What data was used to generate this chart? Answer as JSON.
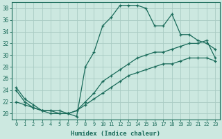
{
  "xlabel": "Humidex (Indice chaleur)",
  "ylabel": "",
  "bg_color": "#cce8e0",
  "line_color": "#1a6b5a",
  "grid_color": "#aaccc4",
  "xlim": [
    -0.5,
    23.5
  ],
  "ylim": [
    19.0,
    39.0
  ],
  "xticks": [
    0,
    1,
    2,
    3,
    4,
    5,
    6,
    7,
    8,
    9,
    10,
    11,
    12,
    13,
    14,
    15,
    16,
    17,
    18,
    19,
    20,
    21,
    22,
    23
  ],
  "yticks": [
    20,
    22,
    24,
    26,
    28,
    30,
    32,
    34,
    36,
    38
  ],
  "line1_x": [
    0,
    1,
    2,
    3,
    4,
    5,
    6,
    7,
    8,
    9,
    10,
    11,
    12,
    13,
    14,
    15,
    16,
    17,
    18,
    19,
    20,
    21,
    22,
    23
  ],
  "line1_y": [
    24.5,
    22.5,
    21.5,
    20.5,
    20.5,
    20.5,
    20.0,
    19.5,
    28.0,
    30.5,
    35.0,
    36.5,
    38.5,
    38.5,
    38.5,
    38.0,
    35.0,
    35.0,
    37.0,
    33.5,
    33.5,
    32.5,
    32.0,
    31.0
  ],
  "line2_x": [
    0,
    1,
    2,
    3,
    4,
    5,
    6,
    7,
    8,
    9,
    10,
    11,
    12,
    13,
    14,
    15,
    16,
    17,
    18,
    19,
    20,
    21,
    22,
    23
  ],
  "line2_y": [
    24.0,
    22.0,
    21.0,
    20.5,
    20.5,
    20.0,
    20.0,
    20.5,
    22.0,
    23.5,
    25.5,
    26.5,
    27.5,
    28.5,
    29.5,
    30.0,
    30.5,
    30.5,
    31.0,
    31.5,
    32.0,
    32.0,
    32.5,
    29.5
  ],
  "line3_x": [
    0,
    1,
    2,
    3,
    4,
    5,
    6,
    7,
    8,
    9,
    10,
    11,
    12,
    13,
    14,
    15,
    16,
    17,
    18,
    19,
    20,
    21,
    22,
    23
  ],
  "line3_y": [
    22.0,
    21.5,
    21.0,
    20.5,
    20.0,
    20.0,
    20.0,
    20.5,
    21.5,
    22.5,
    23.5,
    24.5,
    25.5,
    26.5,
    27.0,
    27.5,
    28.0,
    28.5,
    28.5,
    29.0,
    29.5,
    29.5,
    29.5,
    29.0
  ]
}
